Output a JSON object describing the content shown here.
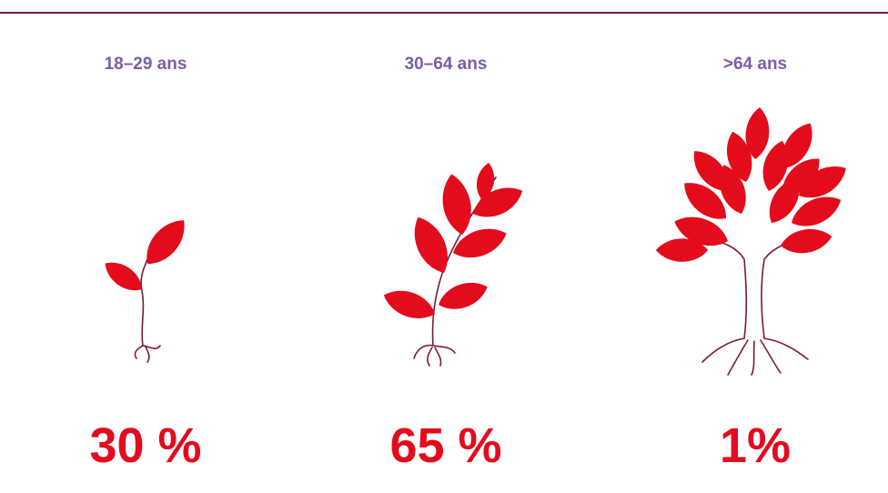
{
  "items": [
    {
      "label": "18–29 ans",
      "value": "30 %"
    },
    {
      "label": "30–64 ans",
      "value": "65 %"
    },
    {
      "label": ">64 ans",
      "value": "1%"
    }
  ]
}
